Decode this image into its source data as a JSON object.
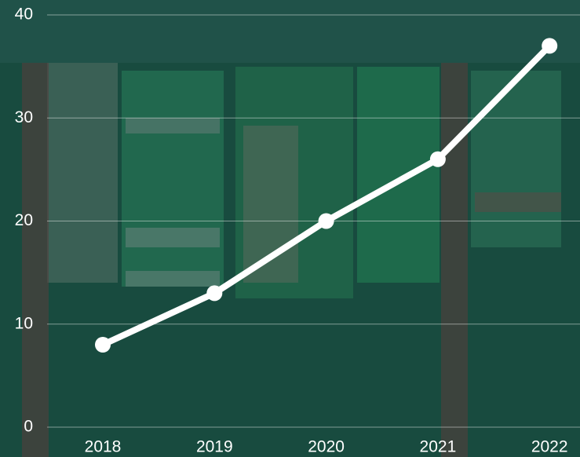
{
  "chart_data": {
    "type": "line",
    "categories": [
      "2018",
      "2019",
      "2020",
      "2021",
      "2022"
    ],
    "series": [
      {
        "values": [
          8,
          13,
          20,
          26,
          37
        ],
        "color": "#ffffff"
      }
    ],
    "ylim": [
      0,
      40
    ],
    "yticks": [
      0,
      10,
      20,
      30,
      40
    ],
    "grid": true
  }
}
